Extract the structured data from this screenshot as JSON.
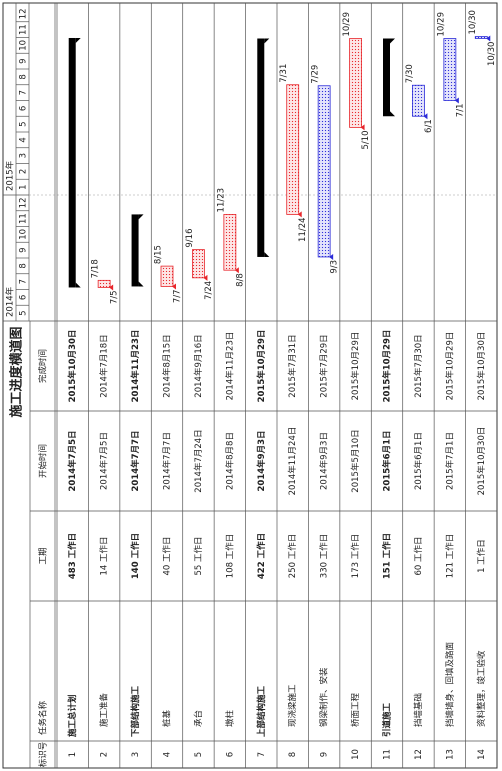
{
  "title": "施工进度横道图",
  "columns": [
    "标识号",
    "任务名称",
    "工期",
    "开始时间",
    "完成时间"
  ],
  "timeline": [
    {
      "label": "2014年",
      "months": [
        "5",
        "6",
        "7",
        "8",
        "9",
        "10",
        "11",
        "12"
      ]
    },
    {
      "label": "2015年",
      "months": [
        "1",
        "2",
        "3",
        "4",
        "5",
        "6",
        "7",
        "8",
        "9",
        "10",
        "11",
        "12"
      ]
    }
  ],
  "rows": [
    {
      "id": "1",
      "name": "施工总计划",
      "duration": "483 工作日",
      "start": "2014年7月5日",
      "finish": "2015年10月30日",
      "summary": true,
      "color": "#000000"
    },
    {
      "id": "2",
      "name": "施工准备",
      "duration": "14 工作日",
      "start": "2014年7月5日",
      "finish": "2014年7月18日",
      "start_label": "7/5",
      "finish_label": "7/18",
      "color": "#e8262b"
    },
    {
      "id": "3",
      "name": "下部结构施工",
      "duration": "140 工作日",
      "start": "2014年7月7日",
      "finish": "2014年11月23日",
      "summary": true,
      "color": "#000000"
    },
    {
      "id": "4",
      "name": "桩基",
      "duration": "40 工作日",
      "start": "2014年7月7日",
      "finish": "2014年8月15日",
      "start_label": "7/7",
      "finish_label": "8/15",
      "color": "#e8262b"
    },
    {
      "id": "5",
      "name": "承台",
      "duration": "55 工作日",
      "start": "2014年7月24日",
      "finish": "2014年9月16日",
      "start_label": "7/24",
      "finish_label": "9/16",
      "color": "#e8262b"
    },
    {
      "id": "6",
      "name": "墩柱",
      "duration": "108 工作日",
      "start": "2014年8月8日",
      "finish": "2014年11月23日",
      "start_label": "8/8",
      "finish_label": "11/23",
      "color": "#e8262b"
    },
    {
      "id": "7",
      "name": "上部结构施工",
      "duration": "422 工作日",
      "start": "2014年9月3日",
      "finish": "2015年10月29日",
      "summary": true,
      "color": "#000000"
    },
    {
      "id": "8",
      "name": "现浇梁施工",
      "duration": "250 工作日",
      "start": "2014年11月24日",
      "finish": "2015年7月31日",
      "start_label": "11/24",
      "finish_label": "7/31",
      "color": "#e8262b"
    },
    {
      "id": "9",
      "name": "钢梁制作、安装",
      "duration": "330 工作日",
      "start": "2014年9月3日",
      "finish": "2015年7月29日",
      "start_label": "9/3",
      "finish_label": "7/29",
      "color": "#2b2bd8"
    },
    {
      "id": "10",
      "name": "桥面工程",
      "duration": "173 工作日",
      "start": "2015年5月10日",
      "finish": "2015年10月29日",
      "start_label": "5/10",
      "finish_label": "10/29",
      "color": "#e8262b"
    },
    {
      "id": "11",
      "name": "引道施工",
      "duration": "151 工作日",
      "start": "2015年6月1日",
      "finish": "2015年10月29日",
      "summary": true,
      "color": "#000000"
    },
    {
      "id": "12",
      "name": "挡墙基础",
      "duration": "60 工作日",
      "start": "2015年6月1日",
      "finish": "2015年7月30日",
      "start_label": "6/1",
      "finish_label": "7/30",
      "color": "#2b2bd8"
    },
    {
      "id": "13",
      "name": "挡墙墙身、回填及路面",
      "duration": "121 工作日",
      "start": "2015年7月1日",
      "finish": "2015年10月29日",
      "start_label": "7/1",
      "finish_label": "10/29",
      "color": "#2b2bd8"
    },
    {
      "id": "14",
      "name": "资料整理，竣工验收",
      "duration": "1 工作日",
      "start": "2015年10月30日",
      "finish": "2015年10月30日",
      "start_label": "10/30",
      "finish_label": "10/30",
      "color": "#2b2bd8"
    }
  ]
}
